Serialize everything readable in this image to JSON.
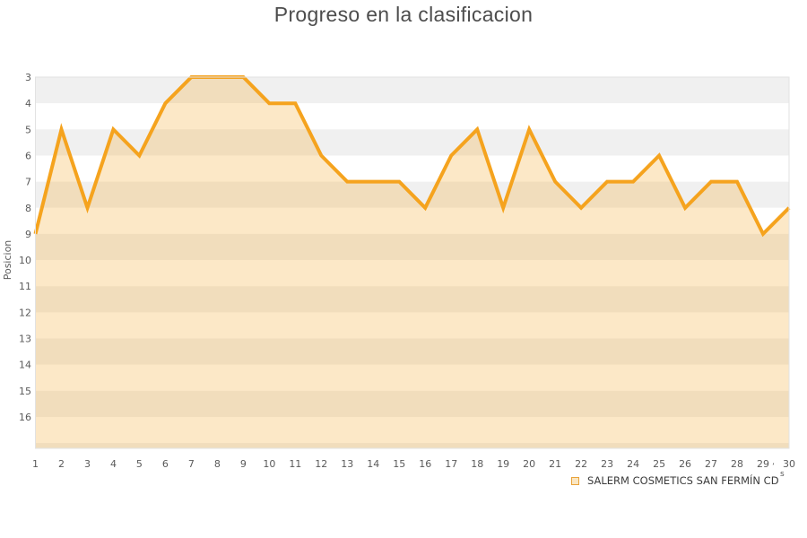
{
  "title": "Progreso en la clasificacion",
  "y_axis_title": "Posicion",
  "legend": {
    "label": "SALERM COSMETICS SAN FERMÍN CD"
  },
  "annotations": {
    "apostrophe": "’",
    "sup": "s"
  },
  "colors": {
    "line": "#f5a31e",
    "area_fill_rgba": "rgba(245,163,30,0.25)",
    "band_gray": "#f0f0f0",
    "band_white": "#ffffff",
    "plot_border": "#e2e2e2",
    "axis_text": "#5a5a5a",
    "title_text": "#4d4d4d",
    "legend_text": "#3c3c3c",
    "legend_swatch_fill": "#fae6c2",
    "legend_swatch_border": "#e9a33b"
  },
  "chart_data": {
    "type": "area",
    "title": "Progreso en la clasificacion",
    "xlabel": "",
    "ylabel": "Posicion",
    "x": [
      1,
      2,
      3,
      4,
      5,
      6,
      7,
      8,
      9,
      10,
      11,
      12,
      13,
      14,
      15,
      16,
      17,
      18,
      19,
      20,
      21,
      22,
      23,
      24,
      25,
      26,
      27,
      28,
      29,
      30
    ],
    "series": [
      {
        "name": "SALERM COSMETICS SAN FERMÍN CD",
        "values": [
          9,
          5,
          8,
          5,
          6,
          4,
          3,
          3,
          3,
          4,
          4,
          6,
          7,
          7,
          7,
          8,
          6,
          5,
          8,
          5,
          7,
          8,
          7,
          7,
          6,
          8,
          7,
          7,
          9,
          8
        ]
      }
    ],
    "y_axis": {
      "min": 3,
      "max": 16,
      "tick_step": 1,
      "direction": "down",
      "banded": true
    },
    "x_axis": {
      "min": 1,
      "max": 30,
      "tick_step": 1
    },
    "legend_position": "bottom-right",
    "grid": "horizontal-bands"
  }
}
